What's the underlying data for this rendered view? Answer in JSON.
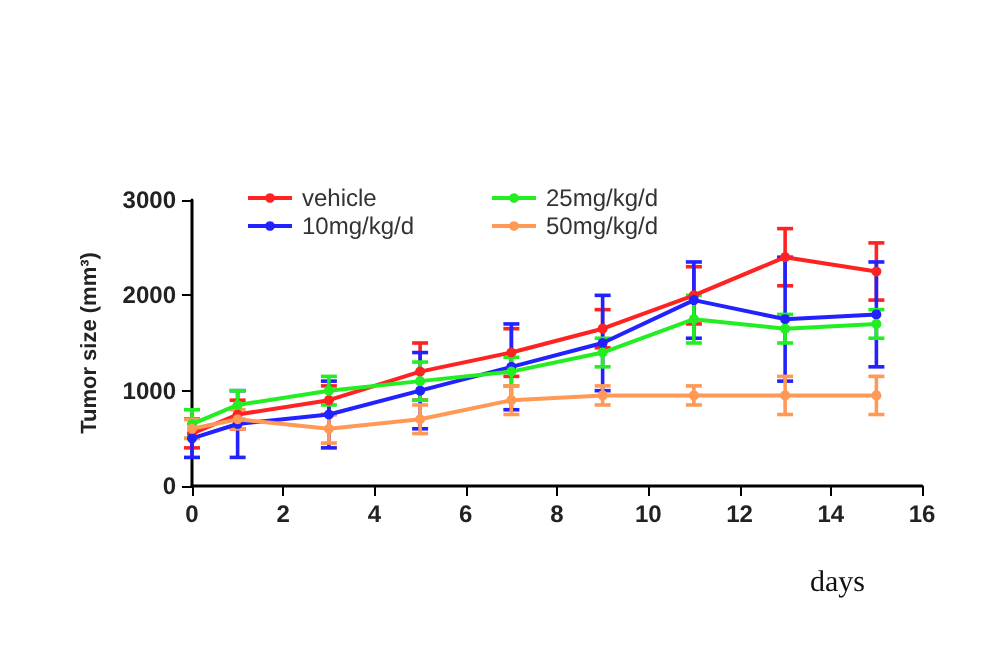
{
  "chart_data": {
    "type": "line",
    "xlabel": "days",
    "ylabel": "Tumor size (mm³)",
    "x": [
      0,
      1,
      3,
      5,
      7,
      9,
      11,
      13,
      15
    ],
    "xlim": [
      0,
      16
    ],
    "xticks": [
      0,
      2,
      4,
      6,
      8,
      10,
      12,
      14,
      16
    ],
    "ylim": [
      0,
      3000
    ],
    "yticks": [
      0,
      1000,
      2000,
      3000
    ],
    "grid": false,
    "legend": "top left",
    "marker": "circle",
    "line_style": "solid",
    "series": [
      {
        "name": "vehicle",
        "color": "#ff2222",
        "values": [
          550,
          750,
          900,
          1200,
          1400,
          1650,
          2000,
          2400,
          2250
        ],
        "errors": [
          150,
          150,
          150,
          300,
          250,
          200,
          300,
          300,
          300
        ]
      },
      {
        "name": "10mg/kg/d",
        "color": "#2222ff",
        "values": [
          500,
          650,
          750,
          1000,
          1250,
          1500,
          1950,
          1750,
          1800
        ],
        "errors": [
          200,
          350,
          350,
          400,
          450,
          500,
          400,
          650,
          550
        ]
      },
      {
        "name": "25mg/kg/d",
        "color": "#22ee22",
        "values": [
          650,
          850,
          1000,
          1100,
          1200,
          1400,
          1750,
          1650,
          1700
        ],
        "errors": [
          150,
          150,
          150,
          200,
          150,
          150,
          250,
          150,
          150
        ]
      },
      {
        "name": "50mg/kg/d",
        "color": "#ff9955",
        "values": [
          600,
          700,
          600,
          700,
          900,
          950,
          950,
          950,
          950
        ],
        "errors": [
          100,
          100,
          150,
          150,
          150,
          100,
          100,
          200,
          200
        ]
      }
    ]
  }
}
